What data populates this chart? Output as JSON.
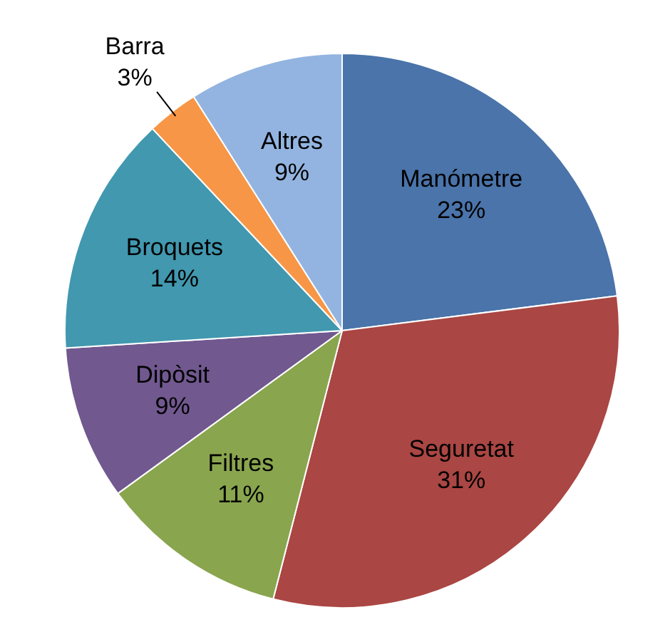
{
  "chart_data": {
    "type": "pie",
    "categories": [
      "Manómetre",
      "Seguretat",
      "Filtres",
      "Dipòsit",
      "Broquets",
      "Barra",
      "Altres"
    ],
    "values": [
      23,
      31,
      11,
      9,
      14,
      3,
      9
    ],
    "value_labels": [
      "23%",
      "31%",
      "11%",
      "9%",
      "14%",
      "3%",
      "9%"
    ],
    "colors": [
      "#4a74aa",
      "#aa4643",
      "#89a54e",
      "#71588f",
      "#4198af",
      "#f79646",
      "#93b4e0"
    ],
    "legend": false
  }
}
